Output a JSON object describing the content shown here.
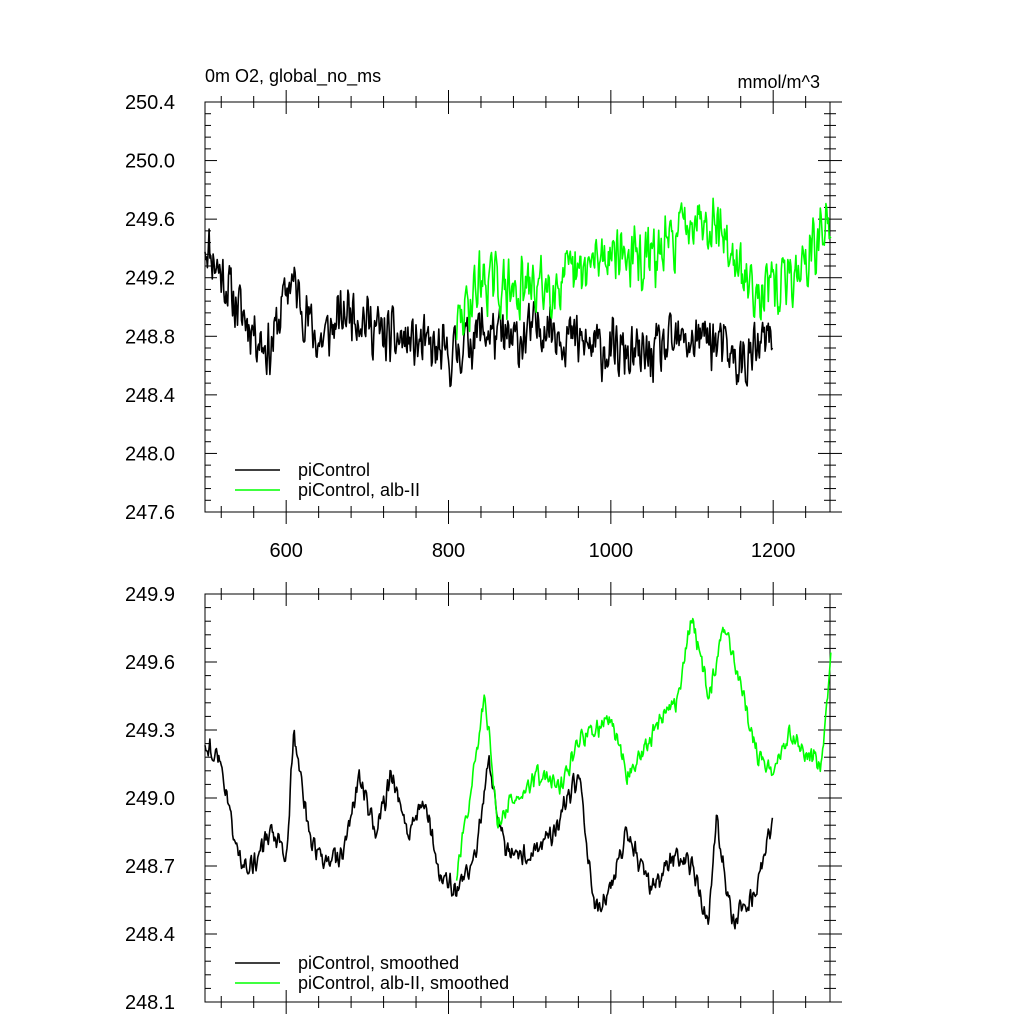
{
  "chart_data": [
    {
      "type": "line",
      "title": "0m O2, global_no_ms",
      "units": "mmol/m^3",
      "xlim": [
        500,
        1270
      ],
      "ylim": [
        247.6,
        250.4
      ],
      "x_ticks": [
        600,
        800,
        1000,
        1200
      ],
      "x_tick_labels": [
        "600",
        "800",
        "1000",
        "1200"
      ],
      "y_ticks": [
        247.6,
        248.0,
        248.4,
        248.8,
        249.2,
        249.6,
        250.0,
        250.4
      ],
      "y_tick_labels": [
        "247.6",
        "248.0",
        "248.4",
        "248.8",
        "249.2",
        "249.6",
        "250.0",
        "250.4"
      ],
      "grid": false,
      "legend_position": "bottom-left",
      "series": [
        {
          "name": "piControl",
          "color": "#000000",
          "x_range": [
            500,
            1199
          ],
          "anchors": [
            [
              500,
              249.45
            ],
            [
              540,
              249.0
            ],
            [
              580,
              248.7
            ],
            [
              605,
              249.2
            ],
            [
              640,
              248.75
            ],
            [
              680,
              249.0
            ],
            [
              720,
              248.8
            ],
            [
              760,
              248.75
            ],
            [
              800,
              248.65
            ],
            [
              840,
              248.85
            ],
            [
              880,
              248.75
            ],
            [
              920,
              248.9
            ],
            [
              960,
              248.75
            ],
            [
              1000,
              248.7
            ],
            [
              1040,
              248.65
            ],
            [
              1080,
              248.75
            ],
            [
              1120,
              248.8
            ],
            [
              1160,
              248.6
            ],
            [
              1199,
              248.8
            ]
          ],
          "noise": 0.28,
          "seed": 11
        },
        {
          "name": "piControl, alb-II",
          "color": "#00ff00",
          "x_range": [
            810,
            1271
          ],
          "anchors": [
            [
              810,
              248.85
            ],
            [
              840,
              249.2
            ],
            [
              880,
              249.1
            ],
            [
              920,
              249.15
            ],
            [
              960,
              249.2
            ],
            [
              1000,
              249.4
            ],
            [
              1040,
              249.3
            ],
            [
              1070,
              249.4
            ],
            [
              1100,
              249.65
            ],
            [
              1130,
              249.6
            ],
            [
              1160,
              249.2
            ],
            [
              1200,
              249.1
            ],
            [
              1240,
              249.3
            ],
            [
              1271,
              249.6
            ]
          ],
          "noise": 0.3,
          "seed": 29
        }
      ]
    },
    {
      "type": "line",
      "xlim": [
        500,
        1270
      ],
      "ylim": [
        248.1,
        249.9
      ],
      "x_ticks": [
        600,
        800,
        1000,
        1200
      ],
      "y_ticks": [
        248.1,
        248.4,
        248.7,
        249.0,
        249.3,
        249.6,
        249.9
      ],
      "y_tick_labels": [
        "248.1",
        "248.4",
        "248.7",
        "249.0",
        "249.3",
        "249.6",
        "249.9"
      ],
      "grid": false,
      "legend_position": "bottom-left",
      "series": [
        {
          "name": "piControl, smoothed",
          "color": "#000000",
          "x_range": [
            500,
            1199
          ],
          "anchors": [
            [
              500,
              249.25
            ],
            [
              520,
              249.15
            ],
            [
              540,
              248.75
            ],
            [
              560,
              248.7
            ],
            [
              580,
              248.85
            ],
            [
              600,
              248.75
            ],
            [
              610,
              249.3
            ],
            [
              630,
              248.8
            ],
            [
              650,
              248.7
            ],
            [
              670,
              248.75
            ],
            [
              690,
              249.1
            ],
            [
              710,
              248.85
            ],
            [
              730,
              249.1
            ],
            [
              750,
              248.85
            ],
            [
              770,
              249.0
            ],
            [
              790,
              248.65
            ],
            [
              810,
              248.6
            ],
            [
              830,
              248.7
            ],
            [
              850,
              249.15
            ],
            [
              870,
              248.75
            ],
            [
              900,
              248.75
            ],
            [
              930,
              248.85
            ],
            [
              960,
              249.1
            ],
            [
              980,
              248.5
            ],
            [
              1000,
              248.6
            ],
            [
              1020,
              248.85
            ],
            [
              1050,
              248.6
            ],
            [
              1080,
              248.75
            ],
            [
              1100,
              248.7
            ],
            [
              1120,
              248.45
            ],
            [
              1130,
              248.9
            ],
            [
              1150,
              248.45
            ],
            [
              1180,
              248.6
            ],
            [
              1199,
              248.9
            ]
          ],
          "noise": 0.07,
          "seed": 43
        },
        {
          "name": "piControl, alb-II, smoothed",
          "color": "#00ff00",
          "x_range": [
            810,
            1271
          ],
          "anchors": [
            [
              810,
              248.65
            ],
            [
              830,
              249.1
            ],
            [
              845,
              249.45
            ],
            [
              860,
              248.9
            ],
            [
              880,
              249.0
            ],
            [
              910,
              249.1
            ],
            [
              940,
              249.05
            ],
            [
              960,
              249.25
            ],
            [
              980,
              249.3
            ],
            [
              1000,
              249.35
            ],
            [
              1020,
              249.1
            ],
            [
              1040,
              249.2
            ],
            [
              1060,
              249.35
            ],
            [
              1080,
              249.4
            ],
            [
              1100,
              249.8
            ],
            [
              1120,
              249.45
            ],
            [
              1140,
              249.75
            ],
            [
              1160,
              249.5
            ],
            [
              1180,
              249.2
            ],
            [
              1200,
              249.1
            ],
            [
              1220,
              249.3
            ],
            [
              1240,
              249.2
            ],
            [
              1260,
              249.15
            ],
            [
              1271,
              249.65
            ]
          ],
          "noise": 0.06,
          "seed": 57
        }
      ]
    }
  ]
}
